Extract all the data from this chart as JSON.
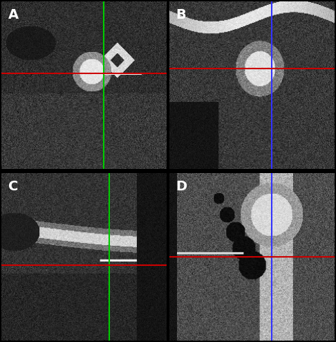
{
  "figsize": [
    4.86,
    4.94
  ],
  "dpi": 100,
  "labels": [
    "A",
    "B",
    "C",
    "D"
  ],
  "label_color": "white",
  "label_fontsize": 14,
  "label_fontweight": "bold",
  "green_line_color": "#00cc00",
  "blue_line_color": "#3333ff",
  "red_line_color": "#cc0000",
  "line_width": 1.5,
  "border_color": "#000000"
}
